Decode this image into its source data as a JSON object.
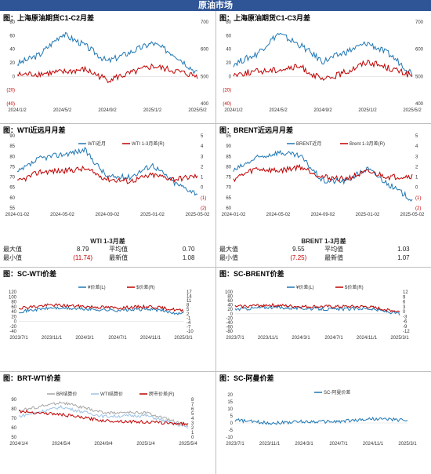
{
  "header": {
    "title": "原油市场"
  },
  "panels": [
    {
      "id": "p1",
      "title": "图：上海原油期货C1-C2月差",
      "left_ticks": [
        "80",
        "60",
        "40",
        "20",
        "0",
        "(20)",
        "(40)"
      ],
      "right_ticks": [
        "700",
        "600",
        "500",
        "400"
      ],
      "x_ticks": [
        "2024/1/2",
        "2024/5/2",
        "2024/9/2",
        "2025/1/2",
        "2025/5/2"
      ]
    },
    {
      "id": "p2",
      "title": "图：上海原油期货C1-C3月差",
      "left_ticks": [
        "80",
        "60",
        "40",
        "20",
        "0",
        "(20)",
        "(40)"
      ],
      "right_ticks": [
        "700",
        "600",
        "500",
        "400"
      ],
      "x_ticks": [
        "2024/1/2",
        "2024/5/2",
        "2024/9/2",
        "2025/1/2",
        "2025/5/2"
      ]
    },
    {
      "id": "p3",
      "title": "图：WTI近远月月差",
      "left_ticks": [
        "90",
        "85",
        "80",
        "75",
        "70",
        "65",
        "60",
        "55"
      ],
      "right_ticks": [
        "5",
        "4",
        "3",
        "2",
        "1",
        "0",
        "(1)",
        "(2)"
      ],
      "x_ticks": [
        "2024-01-02",
        "2024-05-02",
        "2024-09-02",
        "2025-01-02",
        "2025-05-02"
      ],
      "legend": [
        "WTI近月",
        "WTI 1-3月差(R)"
      ]
    },
    {
      "id": "p4",
      "title": "图：BRENT近远月月差",
      "left_ticks": [
        "95",
        "90",
        "85",
        "80",
        "75",
        "70",
        "65",
        "60"
      ],
      "right_ticks": [
        "5",
        "4",
        "3",
        "2",
        "1",
        "0",
        "(1)",
        "(2)"
      ],
      "x_ticks": [
        "2024-01-02",
        "2024-05-02",
        "2024-09-02",
        "2025-01-02",
        "2025-05-02"
      ],
      "legend": [
        "BRENT近月",
        "Brent 1-3月差(R)"
      ]
    },
    {
      "id": "p5",
      "title": "图：SC-WTI价差",
      "left_ticks": [
        "120",
        "100",
        "80",
        "60",
        "40",
        "20",
        "0",
        "-20",
        "-40"
      ],
      "right_ticks": [
        "17",
        "14",
        "11",
        "8",
        "5",
        "2",
        "-1",
        "-4",
        "-7",
        "-10"
      ],
      "x_ticks": [
        "2023/7/1",
        "2023/11/1",
        "2024/3/1",
        "2024/7/1",
        "2024/11/1",
        "2025/3/1"
      ],
      "legend": [
        "¥价差(L)",
        "$价差(R)"
      ]
    },
    {
      "id": "p6",
      "title": "图：SC-BRENT价差",
      "left_ticks": [
        "100",
        "80",
        "60",
        "40",
        "20",
        "0",
        "-20",
        "-40",
        "-60",
        "-80"
      ],
      "right_ticks": [
        "12",
        "9",
        "6",
        "3",
        "0",
        "-3",
        "-6",
        "-9",
        "-12"
      ],
      "x_ticks": [
        "2023/7/1",
        "2023/11/1",
        "2024/3/1",
        "2024/7/1",
        "2024/11/1",
        "2025/3/1"
      ],
      "legend": [
        "¥价差(L)",
        "$价差(R)"
      ]
    },
    {
      "id": "p7",
      "title": "图：BRT-WTI价差",
      "left_ticks": [
        "90",
        "80",
        "70",
        "60",
        "50"
      ],
      "right_ticks": [
        "8",
        "7",
        "6",
        "5",
        "4",
        "3",
        "2",
        "1",
        "0"
      ],
      "x_ticks": [
        "2024/1/4",
        "2024/5/4",
        "2024/9/4",
        "2025/1/4",
        "2025/5/4"
      ],
      "legend": [
        "BR结算价",
        "WTI结算价",
        "跨市价差(R)"
      ]
    },
    {
      "id": "p8",
      "title": "图：SC-阿曼价差",
      "left_ticks": [
        "20",
        "15",
        "10",
        "5",
        "0",
        "-5",
        "-10"
      ],
      "right_ticks": [],
      "x_ticks": [
        "2023/7/1",
        "2023/11/1",
        "2024/3/1",
        "2024/7/1",
        "2024/11/1",
        "2025/3/1"
      ],
      "legend": [
        "SC-阿曼价差"
      ]
    }
  ],
  "stats": [
    {
      "title": "WTI 1-3月差",
      "rows": [
        [
          "最大值",
          "8.79",
          "平均值",
          "0.70"
        ],
        [
          "最小值",
          "(11.74)",
          "最新值",
          "1.08"
        ]
      ]
    },
    {
      "title": "BRENT 1-3月差",
      "rows": [
        [
          "最大值",
          "9.55",
          "平均值",
          "1.03"
        ],
        [
          "最小值",
          "(7.25)",
          "最新值",
          "1.07"
        ]
      ]
    }
  ],
  "colors": {
    "blue": "#1f77b4",
    "red": "#c00000",
    "gray": "#a6a6a6",
    "lightblue": "#9dc3e6",
    "banner": "#2f5597"
  },
  "chart_data": [
    {
      "type": "line",
      "title": "图：上海原油期货C1-C2月差",
      "xlabel": "",
      "ylabel": "",
      "x": [
        "2024/1/2",
        "2024/3/2",
        "2024/5/2",
        "2024/7/2",
        "2024/9/2",
        "2024/11/2",
        "2025/1/2",
        "2025/3/2",
        "2025/5/2"
      ],
      "ylim": [
        -40,
        80
      ],
      "y2lim": [
        350,
        700
      ],
      "series": [
        {
          "axis": "right",
          "values": [
            520,
            560,
            650,
            600,
            530,
            570,
            610,
            560,
            480
          ]
        },
        {
          "axis": "left",
          "values": [
            2,
            4,
            6,
            10,
            -5,
            4,
            15,
            8,
            0
          ]
        }
      ]
    },
    {
      "type": "line",
      "title": "图：上海原油期货C1-C3月差",
      "x": [
        "2024/1/2",
        "2024/3/2",
        "2024/5/2",
        "2024/7/2",
        "2024/9/2",
        "2024/11/2",
        "2025/1/2",
        "2025/3/2",
        "2025/5/2"
      ],
      "ylim": [
        -40,
        80
      ],
      "y2lim": [
        350,
        700
      ],
      "series": [
        {
          "axis": "right",
          "values": [
            520,
            560,
            650,
            600,
            530,
            570,
            610,
            560,
            480
          ]
        },
        {
          "axis": "left",
          "values": [
            3,
            7,
            10,
            14,
            -6,
            6,
            22,
            12,
            1
          ]
        }
      ]
    },
    {
      "type": "line",
      "title": "图：WTI近远月月差",
      "x": [
        "2024-01-02",
        "2024-03-02",
        "2024-05-02",
        "2024-07-02",
        "2024-09-02",
        "2024-11-02",
        "2025-01-02",
        "2025-03-02",
        "2025-05-02"
      ],
      "ylim": [
        55,
        90
      ],
      "y2lim": [
        -2,
        5
      ],
      "series": [
        {
          "name": "WTI近月",
          "axis": "left",
          "values": [
            72,
            79,
            81,
            83,
            70,
            70,
            76,
            67,
            62
          ]
        },
        {
          "name": "WTI 1-3月差(R)",
          "axis": "right",
          "values": [
            0.5,
            1.5,
            1.6,
            1.8,
            0.8,
            0.6,
            1.2,
            0.8,
            1.1
          ]
        }
      ]
    },
    {
      "type": "line",
      "title": "图：BRENT近远月月差",
      "x": [
        "2024-01-02",
        "2024-03-02",
        "2024-05-02",
        "2024-07-02",
        "2024-09-02",
        "2024-11-02",
        "2025-01-02",
        "2025-03-02",
        "2025-05-02"
      ],
      "ylim": [
        60,
        95
      ],
      "y2lim": [
        -2,
        5
      ],
      "series": [
        {
          "name": "BRENT近月",
          "axis": "left",
          "values": [
            78,
            84,
            87,
            85,
            73,
            73,
            79,
            71,
            64
          ]
        },
        {
          "name": "Brent 1-3月差(R)",
          "axis": "right",
          "values": [
            0.8,
            1.8,
            1.6,
            2.0,
            1.0,
            0.8,
            1.5,
            1.0,
            1.1
          ]
        }
      ]
    },
    {
      "type": "line",
      "title": "图：SC-WTI价差",
      "x": [
        "2023/7/1",
        "2023/11/1",
        "2024/3/1",
        "2024/7/1",
        "2024/11/1",
        "2025/3/1"
      ],
      "ylim": [
        -40,
        120
      ],
      "y2lim": [
        -10,
        17
      ],
      "series": [
        {
          "name": "¥价差(L)",
          "axis": "left",
          "values": [
            40,
            55,
            50,
            45,
            50,
            30
          ]
        },
        {
          "name": "$价差(R)",
          "axis": "right",
          "values": [
            6,
            8,
            7,
            6,
            7,
            4
          ]
        }
      ]
    },
    {
      "type": "line",
      "title": "图：SC-BRENT价差",
      "x": [
        "2023/7/1",
        "2023/11/1",
        "2024/3/1",
        "2024/7/1",
        "2024/11/1",
        "2025/3/1"
      ],
      "ylim": [
        -80,
        100
      ],
      "y2lim": [
        -12,
        12
      ],
      "series": [
        {
          "name": "¥价差(L)",
          "axis": "left",
          "values": [
            20,
            30,
            25,
            20,
            25,
            0
          ]
        },
        {
          "name": "$价差(R)",
          "axis": "right",
          "values": [
            3,
            4,
            3,
            3,
            3,
            0
          ]
        }
      ]
    },
    {
      "type": "line",
      "title": "图：BRT-WTI价差",
      "x": [
        "2024/1/4",
        "2024/5/4",
        "2024/9/4",
        "2025/1/4",
        "2025/5/4"
      ],
      "ylim": [
        50,
        90
      ],
      "y2lim": [
        0,
        8
      ],
      "series": [
        {
          "name": "BR结算价",
          "axis": "left",
          "values": [
            78,
            87,
            76,
            76,
            62
          ]
        },
        {
          "name": "WTI结算价",
          "axis": "left",
          "values": [
            72,
            82,
            72,
            73,
            60
          ]
        },
        {
          "name": "跨市价差(R)",
          "axis": "right",
          "values": [
            5.5,
            4.8,
            3.5,
            3.2,
            2.8
          ]
        }
      ]
    },
    {
      "type": "line",
      "title": "图：SC-阿曼价差",
      "x": [
        "2023/7/1",
        "2023/11/1",
        "2024/3/1",
        "2024/7/1",
        "2024/11/1",
        "2025/3/1"
      ],
      "ylim": [
        -10,
        20
      ],
      "series": [
        {
          "name": "SC-阿曼价差",
          "axis": "left",
          "values": [
            2,
            0,
            1,
            1,
            3,
            2
          ]
        }
      ]
    }
  ]
}
